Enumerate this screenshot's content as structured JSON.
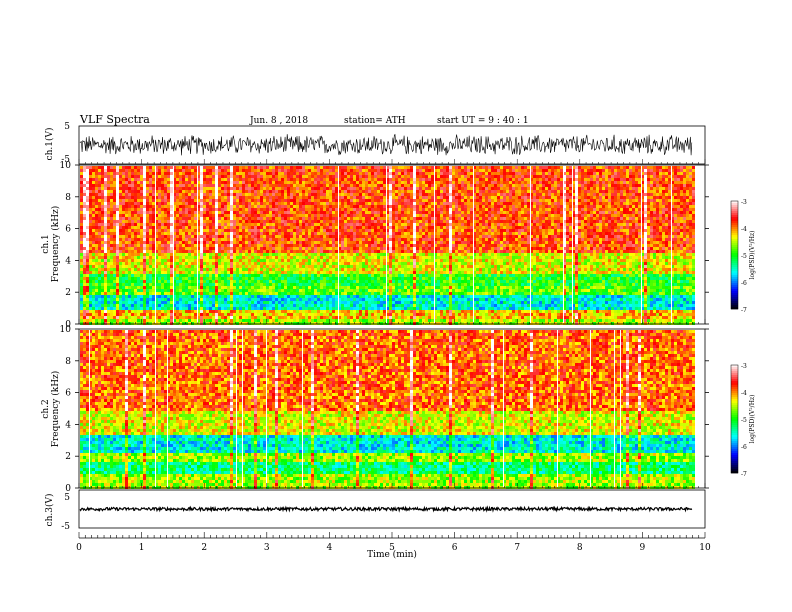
{
  "header": {
    "title": "VLF  Spectra",
    "date": "Jun. 8  , 2018",
    "station": "station= ATH",
    "start": "start  UT  =    9  : 40 : 1"
  },
  "chart_data": [
    {
      "type": "line",
      "title": "",
      "ylabel": "ch.1(V)",
      "ylim": [
        -5,
        5
      ],
      "yticks": [
        "5",
        "-5"
      ],
      "xlim": [
        0,
        10
      ],
      "description_series": "dense VLF voltage waveform, amplitude roughly +/-3 V",
      "series": [
        {
          "amplitude_v": 3.0,
          "center_v": 0.0
        }
      ]
    },
    {
      "type": "heatmap",
      "ylabel": "Frequency  (kHz)",
      "channel_label": "ch.1",
      "ylim": [
        0,
        10
      ],
      "yticks": [
        "0",
        "2",
        "4",
        "6",
        "8",
        "10"
      ],
      "xlim": [
        0,
        10
      ],
      "colorbar": {
        "label": "log(PSD)(V²/Hz)",
        "ticks": [
          "-3",
          "-4",
          "-5",
          "-6",
          "-7"
        ],
        "range": [
          -7,
          -3
        ],
        "colors": [
          "#000000",
          "#0000ff",
          "#00ffff",
          "#00ff00",
          "#ffff00",
          "#ff0000",
          "#ffffff"
        ]
      },
      "bands": [
        {
          "from_khz": 0.0,
          "to_khz": 0.5,
          "level": -4.6
        },
        {
          "from_khz": 0.5,
          "to_khz": 0.9,
          "level": -4.2
        },
        {
          "from_khz": 0.9,
          "to_khz": 1.9,
          "level": -5.6
        },
        {
          "from_khz": 1.9,
          "to_khz": 2.4,
          "level": -4.8
        },
        {
          "from_khz": 2.4,
          "to_khz": 3.3,
          "level": -5.0
        },
        {
          "from_khz": 3.3,
          "to_khz": 4.5,
          "level": -4.4
        },
        {
          "from_khz": 4.5,
          "to_khz": 10.0,
          "level": -3.8
        }
      ]
    },
    {
      "type": "heatmap",
      "ylabel": "Frequency  (kHz)",
      "channel_label": "ch.2",
      "ylim": [
        0,
        10
      ],
      "yticks": [
        "0",
        "2",
        "4",
        "6",
        "8",
        "10"
      ],
      "xlim": [
        0,
        10
      ],
      "colorbar": {
        "label": "log(PSD)(V²/Hz)",
        "ticks": [
          "-3",
          "-4",
          "-5",
          "-6",
          "-7"
        ],
        "range": [
          -7,
          -3
        ],
        "colors": [
          "#000000",
          "#0000ff",
          "#00ffff",
          "#00ff00",
          "#ffff00",
          "#ff0000",
          "#ffffff"
        ]
      },
      "bands": [
        {
          "from_khz": 0.0,
          "to_khz": 0.9,
          "level": -4.6
        },
        {
          "from_khz": 0.9,
          "to_khz": 1.8,
          "level": -5.3
        },
        {
          "from_khz": 1.8,
          "to_khz": 2.3,
          "level": -4.6
        },
        {
          "from_khz": 2.3,
          "to_khz": 3.5,
          "level": -5.6
        },
        {
          "from_khz": 3.5,
          "to_khz": 5.0,
          "level": -4.4
        },
        {
          "from_khz": 5.0,
          "to_khz": 10.0,
          "level": -3.9
        }
      ]
    },
    {
      "type": "line",
      "ylabel": "ch.3(V)",
      "ylim": [
        -5,
        5
      ],
      "yticks": [
        "5",
        "-5"
      ],
      "xlim": [
        0,
        10
      ],
      "series": [
        {
          "amplitude_v": 0.4,
          "center_v": 0.0
        }
      ]
    }
  ],
  "xaxis": {
    "label": "Time  (min)",
    "ticks": [
      "0",
      "1",
      "2",
      "3",
      "4",
      "5",
      "6",
      "7",
      "8",
      "9",
      "10"
    ],
    "range": [
      0,
      10
    ],
    "data_end_min": 9.8
  }
}
